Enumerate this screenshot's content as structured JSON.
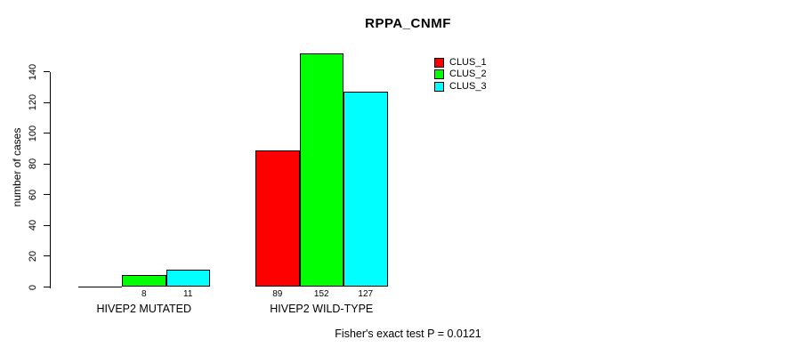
{
  "chart_data": {
    "type": "bar",
    "title": "RPPA_CNMF",
    "ylabel": "number of cases",
    "xlabel": "",
    "categories": [
      "HIVEP2 MUTATED",
      "HIVEP2 WILD-TYPE"
    ],
    "series": [
      {
        "name": "CLUS_1",
        "color": "#ff0000",
        "values": [
          0,
          89
        ]
      },
      {
        "name": "CLUS_2",
        "color": "#00ff00",
        "values": [
          8,
          152
        ]
      },
      {
        "name": "CLUS_3",
        "color": "#00ffff",
        "values": [
          11,
          127
        ]
      }
    ],
    "value_labels": [
      [
        "",
        "89"
      ],
      [
        "8",
        "152"
      ],
      [
        "11",
        "127"
      ]
    ],
    "yticks": [
      0,
      20,
      40,
      60,
      80,
      100,
      120,
      140
    ],
    "ylim": [
      0,
      155
    ],
    "grid": false,
    "legend_position": "top-right",
    "annotation": "Fisher's exact test P = 0.0121"
  }
}
